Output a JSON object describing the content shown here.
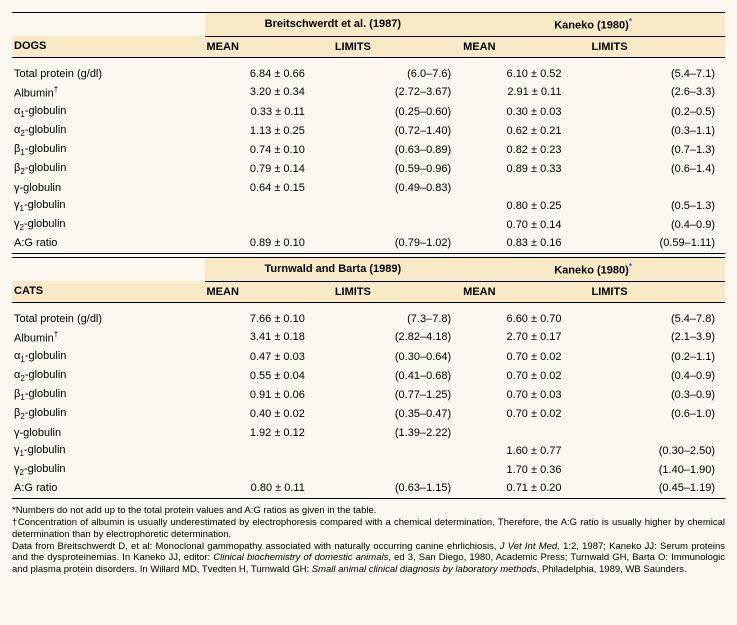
{
  "sections": [
    {
      "species": "DOGS",
      "studyA": "Breitschwerdt et al. (1987)",
      "studyB": "Kaneko (1980)",
      "studyBStar": "*",
      "colMean": "MEAN",
      "colLimits": "LIMITS",
      "rows": [
        {
          "label": "Total protein (g/dl)",
          "m1": "6.84 ± 0.66",
          "l1": "(6.0–7.6)",
          "m2": "6.10 ± 0.52",
          "l2": "(5.4–7.1)"
        },
        {
          "label": "Albumin",
          "dagger": "†",
          "m1": "3.20 ± 0.34",
          "l1": "(2.72–3.67)",
          "m2": "2.91 ± 0.11",
          "l2": "(2.6–3.3)"
        },
        {
          "label": "α",
          "sub": "1",
          "post": "-globulin",
          "m1": "0.33 ± 0.11",
          "l1": "(0.25–0.60)",
          "m2": "0.30 ± 0.03",
          "l2": "(0.2–0.5)"
        },
        {
          "label": "α",
          "sub": "2",
          "post": "-globulin",
          "m1": "1.13 ± 0.25",
          "l1": "(0.72–1.40)",
          "m2": "0.62 ± 0.21",
          "l2": "(0.3–1.1)"
        },
        {
          "label": "β",
          "sub": "1",
          "post": "-globulin",
          "m1": "0.74 ± 0.10",
          "l1": "(0.63–0.89)",
          "m2": "0.82 ± 0.23",
          "l2": "(0.7–1.3)"
        },
        {
          "label": "β",
          "sub": "2",
          "post": "-globulin",
          "m1": "0.79 ± 0.14",
          "l1": "(0.59–0.96)",
          "m2": "0.89 ± 0.33",
          "l2": "(0.6–1.4)"
        },
        {
          "label": "γ-globulin",
          "m1": "0.64 ± 0.15",
          "l1": "(0.49–0.83)",
          "m2": "",
          "l2": ""
        },
        {
          "label": "γ",
          "sub": "1",
          "post": "-globulin",
          "m1": "",
          "l1": "",
          "m2": "0.80 ± 0.25",
          "l2": "(0.5–1.3)"
        },
        {
          "label": "γ",
          "sub": "2",
          "post": "-globulin",
          "m1": "",
          "l1": "",
          "m2": "0.70 ± 0.14",
          "l2": "(0.4–0.9)"
        },
        {
          "label": "A:G ratio",
          "m1": "0.89 ± 0.10",
          "l1": "(0.79–1.02)",
          "m2": "0.83 ± 0.16",
          "l2": "(0.59–1.11)"
        }
      ]
    },
    {
      "species": "CATS",
      "studyA": "Turnwald and Barta (1989)",
      "studyB": "Kaneko (1980)",
      "studyBStar": "*",
      "colMean": "MEAN",
      "colLimits": "LIMITS",
      "rows": [
        {
          "label": "Total protein (g/dl)",
          "m1": "7.66 ± 0.10",
          "l1": "(7.3–7.8)",
          "m2": "6.60 ± 0.70",
          "l2": "(5.4–7.8)"
        },
        {
          "label": "Albumin",
          "dagger": "†",
          "m1": "3.41 ± 0.18",
          "l1": "(2.82–4.18)",
          "m2": "2.70 ± 0.17",
          "l2": "(2.1–3.9)"
        },
        {
          "label": "α",
          "sub": "1",
          "post": "-globulin",
          "m1": "0.47 ± 0.03",
          "l1": "(0.30–0.64)",
          "m2": "0.70 ± 0.02",
          "l2": "(0.2–1.1)"
        },
        {
          "label": "α",
          "sub": "2",
          "post": "-globulin",
          "m1": "0.55 ± 0.04",
          "l1": "(0.41–0.68)",
          "m2": "0.70 ± 0.02",
          "l2": "(0.4–0.9)"
        },
        {
          "label": "β",
          "sub": "1",
          "post": "-globulin",
          "m1": "0.91 ± 0.06",
          "l1": "(0.77–1.25)",
          "m2": "0.70 ± 0.03",
          "l2": "(0.3–0.9)"
        },
        {
          "label": "β",
          "sub": "2",
          "post": "-globulin",
          "m1": "0.40 ± 0.02",
          "l1": "(0.35–0.47)",
          "m2": "0.70 ± 0.02",
          "l2": "(0.6–1.0)"
        },
        {
          "label": "γ-globulin",
          "m1": "1.92 ± 0.12",
          "l1": "(1.39–2.22)",
          "m2": "",
          "l2": ""
        },
        {
          "label": "γ",
          "sub": "1",
          "post": "-globulin",
          "m1": "",
          "l1": "",
          "m2": "1.60 ± 0.77",
          "l2": "(0.30–2.50)"
        },
        {
          "label": "γ",
          "sub": "2",
          "post": "-globulin",
          "m1": "",
          "l1": "",
          "m2": "1.70 ± 0.36",
          "l2": "(1.40–1.90)"
        },
        {
          "label": "A:G ratio",
          "m1": "0.80 ± 0.11",
          "l1": "(0.63–1.15)",
          "m2": "0.71 ± 0.20",
          "l2": "(0.45–1.19)"
        }
      ]
    }
  ],
  "footnotes": {
    "star": "*Numbers do not add up to the total protein values and A:G ratios as given in the table.",
    "dagger": "†Concentration of albumin is usually underestimated by electrophoresis compared with a chemical determination. Therefore, the A:G ratio is usually higher by chemical determination than by electrophoretic determination.",
    "ref1a": "Data from Breitschwerdt D, et al: Monoclonal gammopathy associated with naturally occurring canine ehrlichiosis, ",
    "ref1i": "J Vet Int Med,",
    "ref1b": " 1:2, 1987; Kaneko JJ: Serum proteins and the dysproteinemias. In Kaneko JJ, editor: ",
    "ref2i": "Clinical biochemistry of domestic animals",
    "ref2b": ", ed 3, San Diego, 1980, Academic Press; Turnwald GH, Barta O: Immunologic and plasma protein disorders. In Willard MD, Tvedten H, Turnwald GH: ",
    "ref3i": "Small animal clinical diagnosis by laboratory methods",
    "ref3b": ", Philadelphia, 1989, WB Saunders."
  }
}
